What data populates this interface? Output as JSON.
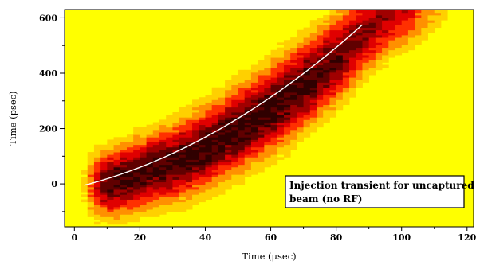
{
  "chart_data": {
    "type": "heatmap",
    "title": "",
    "xlabel": "Time (μsec)",
    "ylabel": "Time (psec)",
    "xlim": [
      -3,
      122
    ],
    "ylim": [
      -155,
      630
    ],
    "x_ticks": [
      0,
      20,
      40,
      60,
      80,
      100,
      120
    ],
    "y_ticks": [
      0,
      200,
      400,
      600
    ],
    "x_tick_labels": [
      "0",
      "20",
      "40",
      "60",
      "80",
      "100",
      "120"
    ],
    "y_tick_labels": [
      "0",
      "200",
      "400",
      "600"
    ],
    "colormap": [
      "#FFFF00",
      "#FFD000",
      "#FF9000",
      "#FF3000",
      "#E00000",
      "#A00000",
      "#600000",
      "#300000"
    ],
    "background_color": "#FFFF00",
    "density_ridge": {
      "x": [
        3,
        10,
        20,
        30,
        40,
        50,
        60,
        70,
        80,
        88,
        95,
        100,
        108
      ],
      "y": [
        -10,
        0,
        35,
        75,
        130,
        200,
        275,
        360,
        455,
        545,
        600,
        620,
        625
      ]
    },
    "band_half_width_psec": {
      "x": [
        0,
        20,
        40,
        60,
        80,
        100,
        115
      ],
      "values": [
        120,
        140,
        160,
        170,
        170,
        140,
        100
      ]
    },
    "fit_curve": {
      "x": [
        3,
        88
      ],
      "y_start": -5,
      "y_end": 575,
      "color": "#FFFFFF"
    },
    "annotation": {
      "lines": [
        "Injection transient for uncaptured",
        "beam (no RF)"
      ]
    },
    "grid": false,
    "legend": "none"
  }
}
